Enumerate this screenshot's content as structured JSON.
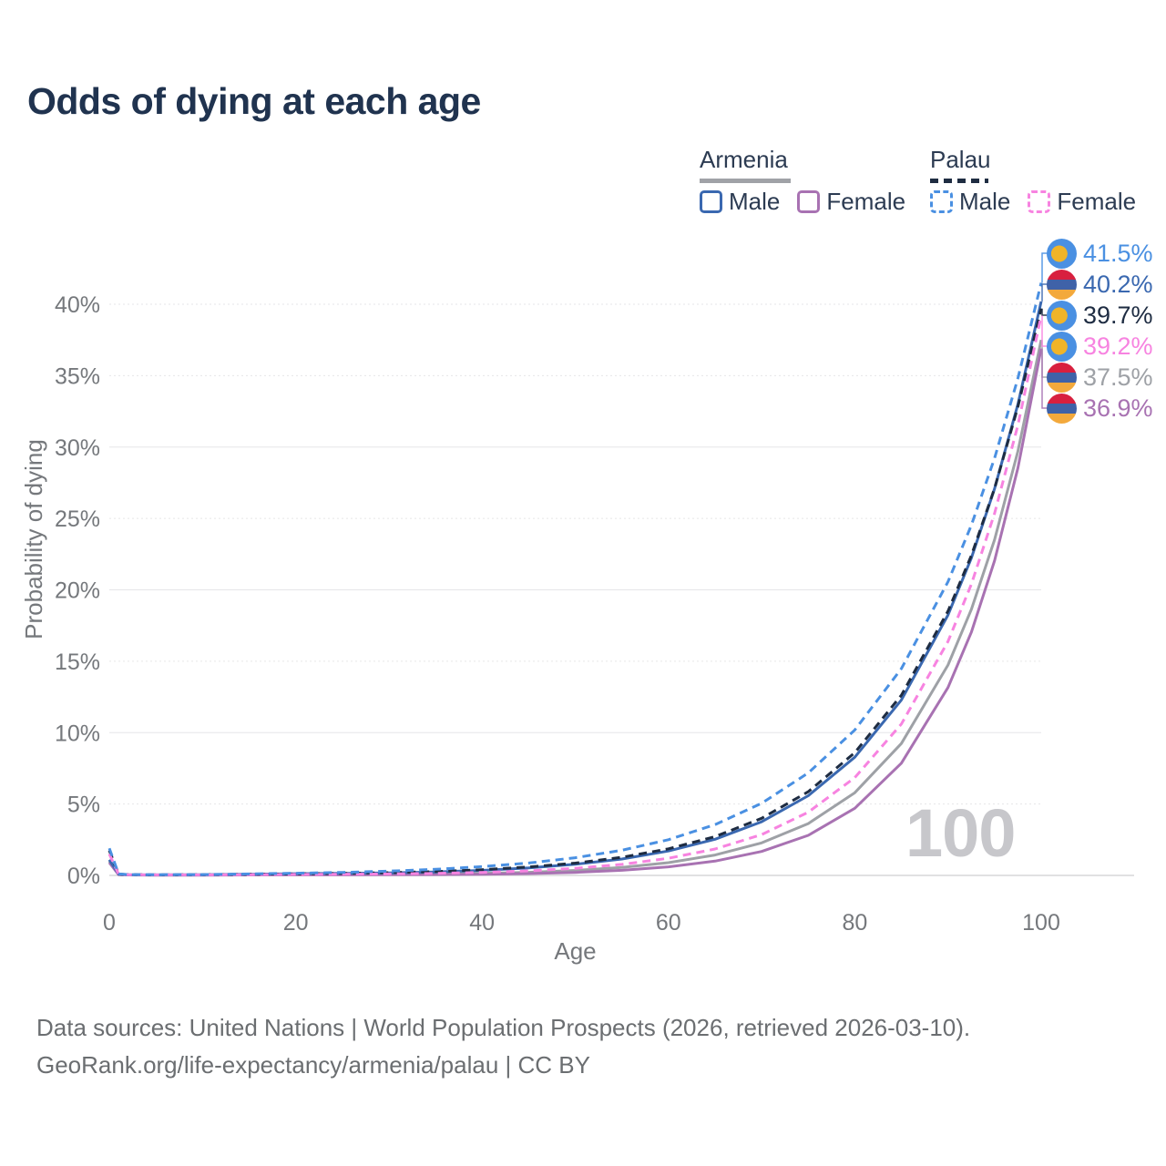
{
  "title": "Odds of dying at each age",
  "watermark": "100",
  "legend": {
    "armenia": {
      "name": "Armenia",
      "male": "Male",
      "female": "Female"
    },
    "palau": {
      "name": "Palau",
      "male": "Male",
      "female": "Female"
    }
  },
  "colors": {
    "armenia_male": "#3a68b0",
    "armenia_female": "#a872b2",
    "armenia_both": "#9ea1a6",
    "palau_male": "#4a90e2",
    "palau_female": "#f783e0",
    "palau_both": "#1e2c42",
    "armenia_underline": "#a0a2a7",
    "palau_underline": "#1f2d42",
    "title_text": "#20334f",
    "axis_text": "#75787c",
    "gridline": "#e6e6e8",
    "axis_line": "#d7d7d9",
    "watermark_text": "#c7c7cb"
  },
  "footer": {
    "line1": "Data sources: United Nations | World Population Prospects (2026, retrieved 2026-03-10).",
    "line2": "GeoRank.org/life-expectancy/armenia/palau | CC BY"
  },
  "chart_data": {
    "type": "line",
    "title": "Odds of dying at each age",
    "xlabel": "Age",
    "ylabel": "Probability of dying",
    "xlim": [
      0,
      100
    ],
    "ylim": [
      0,
      40
    ],
    "xticks": [
      0,
      20,
      40,
      60,
      80,
      100
    ],
    "yticks": [
      0,
      5,
      10,
      15,
      20,
      25,
      30,
      35,
      40
    ],
    "ytick_suffix": "%",
    "grid": true,
    "legend_position": "top-right",
    "x": [
      0,
      1,
      2,
      5,
      10,
      15,
      20,
      25,
      30,
      35,
      40,
      45,
      50,
      55,
      60,
      65,
      70,
      75,
      80,
      85,
      90,
      92.5,
      95,
      97.5,
      100
    ],
    "series": [
      {
        "id": "armenia_both",
        "name": "Armenia (both sexes)",
        "country": "armenia",
        "sex": "both",
        "color": "#9ea1a6",
        "dashed": false,
        "end_label": "37.5%",
        "label_row": 4,
        "values": [
          1.0,
          0.07,
          0.04,
          0.03,
          0.03,
          0.04,
          0.06,
          0.07,
          0.08,
          0.1,
          0.14,
          0.22,
          0.35,
          0.56,
          0.89,
          1.43,
          2.28,
          3.63,
          5.79,
          9.24,
          14.74,
          18.62,
          23.51,
          29.7,
          37.5
        ]
      },
      {
        "id": "armenia_female",
        "name": "Armenia Female",
        "country": "armenia",
        "sex": "female",
        "color": "#a872b2",
        "dashed": false,
        "end_label": "36.9%",
        "label_row": 5,
        "values": [
          0.9,
          0.05,
          0.03,
          0.02,
          0.02,
          0.03,
          0.04,
          0.04,
          0.05,
          0.06,
          0.08,
          0.13,
          0.21,
          0.36,
          0.6,
          1.0,
          1.68,
          2.81,
          4.7,
          7.86,
          13.16,
          17.03,
          22.04,
          28.52,
          36.9
        ]
      },
      {
        "id": "armenia_male",
        "name": "Armenia Male",
        "country": "armenia",
        "sex": "male",
        "color": "#3a68b0",
        "dashed": false,
        "end_label": "40.2%",
        "label_row": 1,
        "values": [
          1.1,
          0.09,
          0.05,
          0.04,
          0.05,
          0.08,
          0.12,
          0.14,
          0.18,
          0.24,
          0.35,
          0.52,
          0.78,
          1.15,
          1.71,
          2.53,
          3.76,
          5.58,
          8.28,
          12.29,
          18.24,
          22.22,
          27.08,
          32.99,
          40.2
        ]
      },
      {
        "id": "palau_both",
        "name": "Palau (both sexes)",
        "country": "palau",
        "sex": "both",
        "color": "#1e2c42",
        "dashed": true,
        "end_label": "39.7%",
        "label_row": 2,
        "values": [
          1.75,
          0.09,
          0.06,
          0.04,
          0.05,
          0.08,
          0.11,
          0.14,
          0.19,
          0.27,
          0.4,
          0.59,
          0.86,
          1.27,
          1.86,
          2.72,
          4.0,
          5.86,
          8.6,
          12.62,
          18.51,
          22.4,
          27.11,
          32.81,
          39.7
        ]
      },
      {
        "id": "palau_female",
        "name": "Palau Female",
        "country": "palau",
        "sex": "female",
        "color": "#f783e0",
        "dashed": true,
        "end_label": "39.2%",
        "label_row": 3,
        "values": [
          1.5,
          0.08,
          0.05,
          0.04,
          0.04,
          0.05,
          0.07,
          0.08,
          0.1,
          0.14,
          0.21,
          0.32,
          0.5,
          0.77,
          1.2,
          1.85,
          2.86,
          4.43,
          6.85,
          10.6,
          16.39,
          20.38,
          25.35,
          31.52,
          39.2
        ]
      },
      {
        "id": "palau_male",
        "name": "Palau Male",
        "country": "palau",
        "sex": "male",
        "color": "#4a90e2",
        "dashed": true,
        "end_label": "41.5%",
        "label_row": 0,
        "values": [
          1.9,
          0.1,
          0.06,
          0.05,
          0.06,
          0.1,
          0.15,
          0.21,
          0.3,
          0.43,
          0.62,
          0.87,
          1.24,
          1.76,
          2.5,
          3.56,
          5.05,
          7.18,
          10.19,
          14.48,
          20.57,
          24.52,
          29.22,
          34.81,
          41.5
        ]
      }
    ]
  }
}
